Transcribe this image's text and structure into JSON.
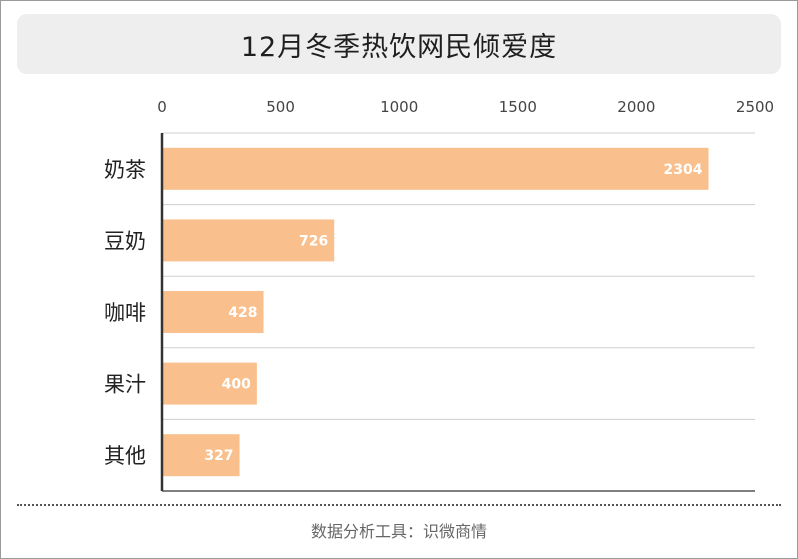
{
  "title": "12月冬季热饮网民倾爱度",
  "source": "数据分析工具：识微商情",
  "colors": {
    "bar": "#f9c08e",
    "value_label": "#ffffff",
    "axis": "#333333",
    "grid": "#cfcfcf",
    "tick_text": "#444444"
  },
  "chart_data": {
    "type": "bar",
    "orientation": "horizontal",
    "categories": [
      "奶茶",
      "豆奶",
      "咖啡",
      "果汁",
      "其他"
    ],
    "values": [
      2304,
      726,
      428,
      400,
      327
    ],
    "xlim": [
      0,
      2500
    ],
    "xticks": [
      0,
      500,
      1000,
      1500,
      2000,
      2500
    ],
    "xaxis_position": "top",
    "grid": true,
    "title": "12月冬季热饮网民倾爱度",
    "xlabel": "",
    "ylabel": ""
  }
}
